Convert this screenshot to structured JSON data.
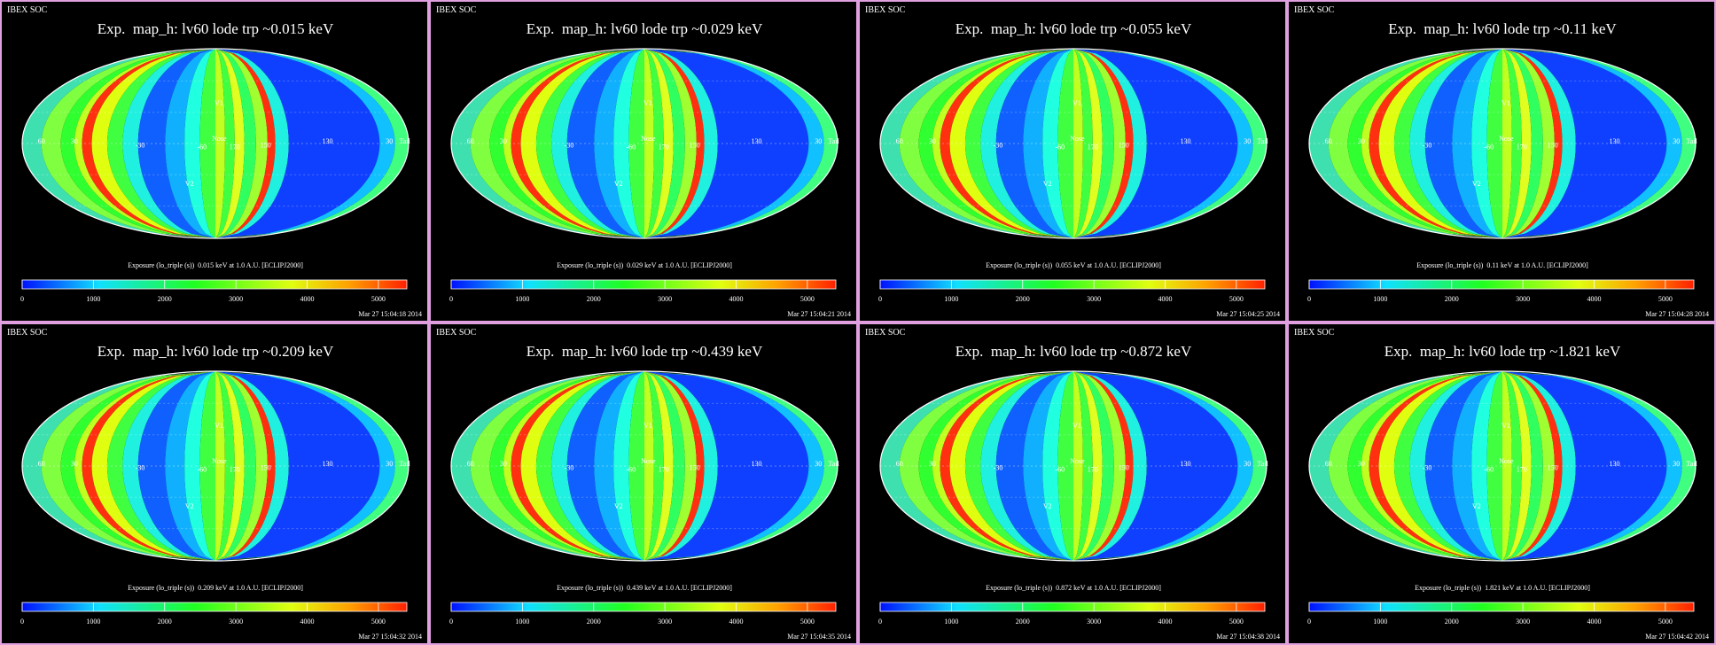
{
  "panels": [
    {
      "header": "IBEX SOC",
      "title": "Exp.  map_h: lv60 lode trp ~0.015 keV",
      "caption": "Exposure (lo_triple (s))  0.015 keV at 1.0 A.U. [ECLIPJ2000]",
      "timestamp": "Mar 27 15:04:18 2014"
    },
    {
      "header": "IBEX SOC",
      "title": "Exp.  map_h: lv60 lode trp ~0.029 keV",
      "caption": "Exposure (lo_triple (s))  0.029 keV at 1.0 A.U. [ECLIPJ2000]",
      "timestamp": "Mar 27 15:04:21 2014"
    },
    {
      "header": "IBEX SOC",
      "title": "Exp.  map_h: lv60 lode trp ~0.055 keV",
      "caption": "Exposure (lo_triple (s))  0.055 keV at 1.0 A.U. [ECLIPJ2000]",
      "timestamp": "Mar 27 15:04:25 2014"
    },
    {
      "header": "IBEX SOC",
      "title": "Exp.  map_h: lv60 lode trp ~0.11 keV",
      "caption": "Exposure (lo_triple (s))  0.11 keV at 1.0 A.U. [ECLIPJ2000]",
      "timestamp": "Mar 27 15:04:28 2014"
    },
    {
      "header": "IBEX SOC",
      "title": "Exp.  map_h: lv60 lode trp ~0.209 keV",
      "caption": "Exposure (lo_triple (s))  0.209 keV at 1.0 A.U. [ECLIPJ2000]",
      "timestamp": "Mar 27 15:04:32 2014"
    },
    {
      "header": "IBEX SOC",
      "title": "Exp.  map_h: lv60 lode trp ~0.439 keV",
      "caption": "Exposure (lo_triple (s))  0.439 keV at 1.0 A.U. [ECLIPJ2000]",
      "timestamp": "Mar 27 15:04:35 2014"
    },
    {
      "header": "IBEX SOC",
      "title": "Exp.  map_h: lv60 lode trp ~0.872 keV",
      "caption": "Exposure (lo_triple (s))  0.872 keV at 1.0 A.U. [ECLIPJ2000]",
      "timestamp": "Mar 27 15:04:38 2014"
    },
    {
      "header": "IBEX SOC",
      "title": "Exp.  map_h: lv60 lode trp ~1.821 keV",
      "caption": "Exposure (lo_triple (s))  1.821 keV at 1.0 A.U. [ECLIPJ2000]",
      "timestamp": "Mar 27 15:04:42 2014"
    }
  ],
  "colorbar": {
    "range": [
      0,
      5400
    ],
    "ticks": [
      0,
      1000,
      2000,
      3000,
      4000,
      5000
    ]
  },
  "map_labels": [
    "60",
    "30",
    "-30",
    "-60",
    "Nose",
    "170",
    "150",
    "130",
    "30",
    "Tail",
    "V1",
    "V2"
  ]
}
